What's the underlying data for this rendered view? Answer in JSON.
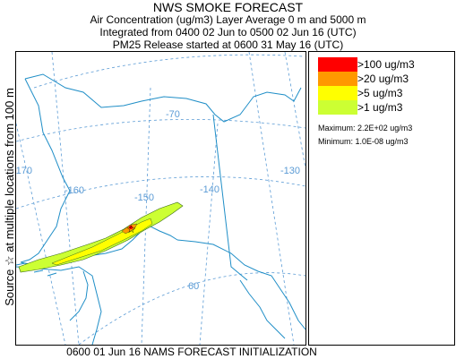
{
  "header": {
    "title": "NWS SMOKE FORECAST",
    "line1": "Air Concentration (ug/m3) Layer Average    0 m and  5000 m",
    "line2": "Integrated from 0400 02 Jun to 0500 02 Jun 16 (UTC)",
    "line3": "PM25 Release started at 0600 31 May 16 (UTC)"
  },
  "side_label": "Source ☆  at multiple locations   from   100 m",
  "map": {
    "longitude_labels": [
      "-170",
      "-160",
      "-150",
      "-140",
      "-130",
      "-70"
    ],
    "latitude_labels": [
      "60"
    ],
    "colors": {
      "graticule": "#5b9bd5",
      "coastline": "#1f8ec7",
      "plume_outline": "#3a6b1a"
    }
  },
  "legend": {
    "items": [
      {
        "label": ">100 ug/m3",
        "color": "#ff0000"
      },
      {
        "label": ">20 ug/m3",
        "color": "#ff9900"
      },
      {
        "label": ">5 ug/m3",
        "color": "#ffff00"
      },
      {
        "label": ">1 ug/m3",
        "color": "#ccff33"
      }
    ],
    "maximum": "Maximum: 2.2E+02 ug/m3",
    "minimum": "Minimum: 1.0E-08 ug/m3"
  },
  "footer": "0600 01 Jun 16 NAMS FORECAST INITIALIZATION"
}
